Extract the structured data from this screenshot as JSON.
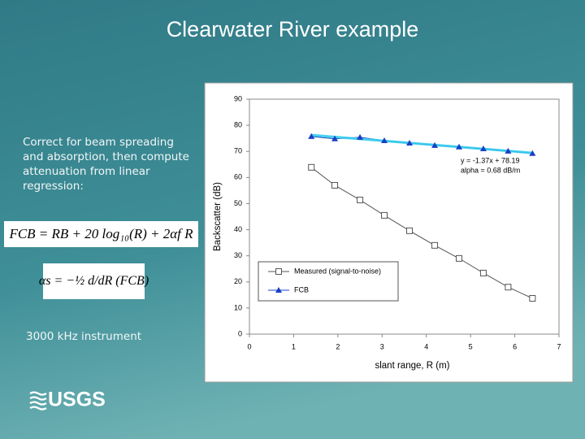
{
  "slide_title": "Clearwater River example",
  "body_text": "Correct for beam spreading and absorption, then compute attenuation from linear regression:",
  "equations": [
    "FCB = RB + 20 log₁₀(R) + 2αf R",
    "αs = −½ d/dR (FCB)"
  ],
  "note": "3000 kHz instrument",
  "logo": "USGS",
  "chart_data": {
    "type": "line",
    "xlabel": "slant range, R (m)",
    "ylabel": "Backscatter (dB)",
    "xlim": [
      0,
      7
    ],
    "xticks": [
      0,
      1,
      2,
      3,
      4,
      5,
      6,
      7
    ],
    "ylim": [
      0,
      90
    ],
    "yticks": [
      0,
      10,
      20,
      30,
      40,
      50,
      60,
      70,
      80,
      90
    ],
    "grid": false,
    "legend": "lower left",
    "x": [
      1.4,
      1.93,
      2.5,
      3.05,
      3.62,
      4.19,
      4.74,
      5.29,
      5.85,
      6.4
    ],
    "series": [
      {
        "name": "Measured (signal-to-noise)",
        "color": "#555555",
        "marker": "square",
        "values": [
          63.9,
          57,
          51.4,
          45.5,
          39.6,
          34,
          29,
          23.4,
          18,
          13.7
        ]
      },
      {
        "name": "FCB",
        "color": "#1a3fc4",
        "marker": "triangle",
        "values": [
          75.7,
          74.8,
          75.4,
          74.1,
          73.2,
          72.3,
          71.7,
          71,
          70.1,
          69.2
        ]
      }
    ],
    "trendline": {
      "slope": -1.37,
      "intercept": 78.19,
      "color": "#33ccee"
    },
    "annotations": [
      "y = -1.37x + 78.19",
      "alpha = 0.68 dB/m"
    ]
  }
}
